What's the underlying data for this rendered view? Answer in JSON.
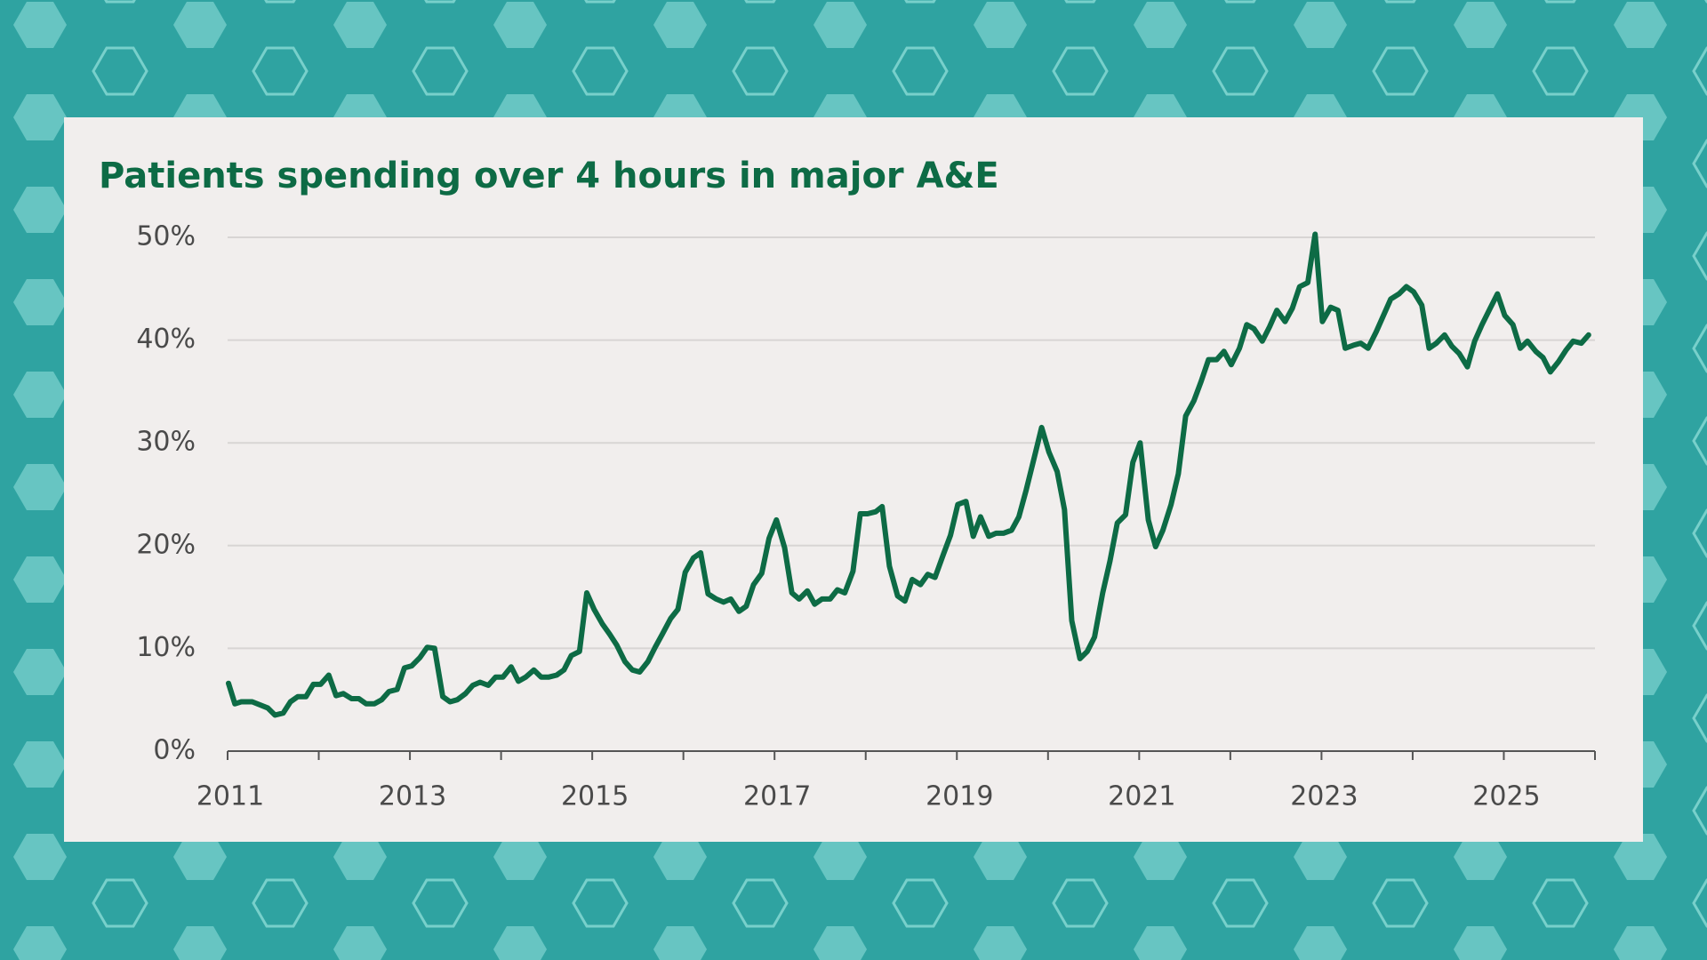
{
  "chart_data": {
    "type": "line",
    "title": "Patients spending over 4 hours in major A&E",
    "x": [
      2011.01,
      2011.08,
      2011.15,
      2011.27,
      2011.44,
      2011.52,
      2011.61,
      2011.69,
      2011.77,
      2011.86,
      2011.94,
      2012.02,
      2012.11,
      2012.19,
      2012.27,
      2012.36,
      2012.44,
      2012.52,
      2012.61,
      2012.69,
      2012.77,
      2012.86,
      2012.94,
      2013.02,
      2013.11,
      2013.19,
      2013.27,
      2013.36,
      2013.44,
      2013.52,
      2013.61,
      2013.69,
      2013.77,
      2013.86,
      2013.94,
      2014.02,
      2014.11,
      2014.19,
      2014.27,
      2014.36,
      2014.44,
      2014.52,
      2014.61,
      2014.69,
      2014.77,
      2014.86,
      2014.94,
      2015.02,
      2015.11,
      2015.19,
      2015.27,
      2015.36,
      2015.44,
      2015.52,
      2015.61,
      2015.69,
      2015.77,
      2015.86,
      2015.94,
      2016.02,
      2016.11,
      2016.19,
      2016.27,
      2016.36,
      2016.44,
      2016.52,
      2016.61,
      2016.69,
      2016.77,
      2016.86,
      2016.94,
      2017.02,
      2017.11,
      2017.19,
      2017.27,
      2017.36,
      2017.44,
      2017.52,
      2017.61,
      2017.69,
      2017.77,
      2017.86,
      2017.94,
      2018.02,
      2018.11,
      2018.18,
      2018.26,
      2018.35,
      2018.43,
      2018.51,
      2018.6,
      2018.68,
      2018.76,
      2018.85,
      2018.93,
      2019.01,
      2019.1,
      2019.18,
      2019.26,
      2019.35,
      2019.43,
      2019.51,
      2019.6,
      2019.68,
      2019.76,
      2019.85,
      2019.93,
      2020.01,
      2020.1,
      2020.18,
      2020.26,
      2020.35,
      2020.43,
      2020.51,
      2020.6,
      2020.68,
      2020.76,
      2020.85,
      2020.93,
      2021.01,
      2021.1,
      2021.18,
      2021.26,
      2021.35,
      2021.43,
      2021.51,
      2021.6,
      2021.68,
      2021.76,
      2021.85,
      2021.93,
      2022.01,
      2022.1,
      2022.18,
      2022.26,
      2022.35,
      2022.43,
      2022.51,
      2022.6,
      2022.68,
      2022.76,
      2022.85,
      2022.93,
      2023.01,
      2023.1,
      2023.18,
      2023.26,
      2023.35,
      2023.43,
      2023.51,
      2023.6,
      2023.68,
      2023.76,
      2023.85,
      2023.93,
      2024.01,
      2024.1,
      2024.18,
      2024.26,
      2024.35,
      2024.43,
      2024.51,
      2024.6,
      2024.68,
      2024.76,
      2024.85,
      2024.93,
      2025.01,
      2025.1,
      2025.18,
      2025.26,
      2025.35,
      2025.43,
      2025.51,
      2025.6,
      2025.68,
      2025.76,
      2025.85,
      2025.93
    ],
    "series": [
      {
        "color": "#0d6b45",
        "values": [
          6.6,
          4.6,
          4.8,
          4.8,
          4.2,
          3.5,
          3.7,
          4.8,
          5.3,
          5.3,
          6.5,
          6.5,
          7.4,
          5.4,
          5.6,
          5.1,
          5.1,
          4.6,
          4.6,
          5.0,
          5.8,
          6.0,
          8.1,
          8.3,
          9.1,
          10.1,
          10.0,
          5.3,
          4.8,
          5.0,
          5.6,
          6.4,
          6.7,
          6.4,
          7.2,
          7.2,
          8.2,
          6.8,
          7.2,
          7.9,
          7.2,
          7.2,
          7.4,
          7.9,
          9.3,
          9.7,
          15.4,
          13.8,
          12.4,
          11.4,
          10.3,
          8.7,
          7.9,
          7.7,
          8.7,
          10.1,
          11.4,
          12.9,
          13.8,
          17.4,
          18.8,
          19.3,
          15.3,
          14.8,
          14.5,
          14.8,
          13.6,
          14.1,
          16.2,
          17.3,
          20.7,
          22.5,
          19.8,
          15.4,
          14.8,
          15.6,
          14.3,
          14.8,
          14.8,
          15.7,
          15.4,
          17.5,
          23.1,
          23.1,
          23.3,
          23.8,
          18.0,
          15.1,
          14.6,
          16.7,
          16.2,
          17.2,
          16.9,
          19.1,
          21.0,
          24.0,
          24.3,
          20.9,
          22.8,
          20.9,
          21.2,
          21.2,
          21.5,
          22.8,
          25.4,
          28.6,
          31.5,
          29.1,
          27.2,
          23.5,
          12.7,
          9.0,
          9.7,
          11.1,
          15.4,
          18.5,
          22.2,
          23.0,
          28.1,
          30.0,
          22.5,
          19.9,
          21.5,
          24.0,
          27.0,
          32.6,
          34.1,
          36.0,
          38.1,
          38.1,
          38.9,
          37.6,
          39.2,
          41.5,
          41.1,
          39.9,
          41.3,
          42.9,
          41.8,
          43.1,
          45.2,
          45.6,
          50.3,
          41.8,
          43.2,
          42.9,
          39.2,
          39.5,
          39.7,
          39.2,
          40.8,
          42.4,
          44.0,
          44.5,
          45.2,
          44.7,
          43.4,
          39.2,
          39.7,
          40.5,
          39.4,
          38.7,
          37.4,
          39.9,
          41.5,
          43.1,
          44.5,
          42.4,
          41.5,
          39.2,
          39.9,
          38.9,
          38.3,
          36.9,
          37.9,
          39.0,
          39.9,
          39.7,
          40.5
        ]
      }
    ],
    "xlim": [
      2011,
      2026
    ],
    "xticks": [
      2011,
      2013,
      2015,
      2017,
      2019,
      2021,
      2023,
      2025
    ],
    "xminorticks": [
      2012,
      2014,
      2016,
      2018,
      2020,
      2022,
      2024,
      2026
    ],
    "ylim": [
      0,
      50
    ],
    "yticks": [
      {
        "value": 0,
        "label": "0%"
      },
      {
        "value": 10,
        "label": "10%"
      },
      {
        "value": 20,
        "label": "20%"
      },
      {
        "value": 30,
        "label": "30%"
      },
      {
        "value": 40,
        "label": "40%"
      },
      {
        "value": 50,
        "label": "50%"
      }
    ],
    "grid": true
  }
}
